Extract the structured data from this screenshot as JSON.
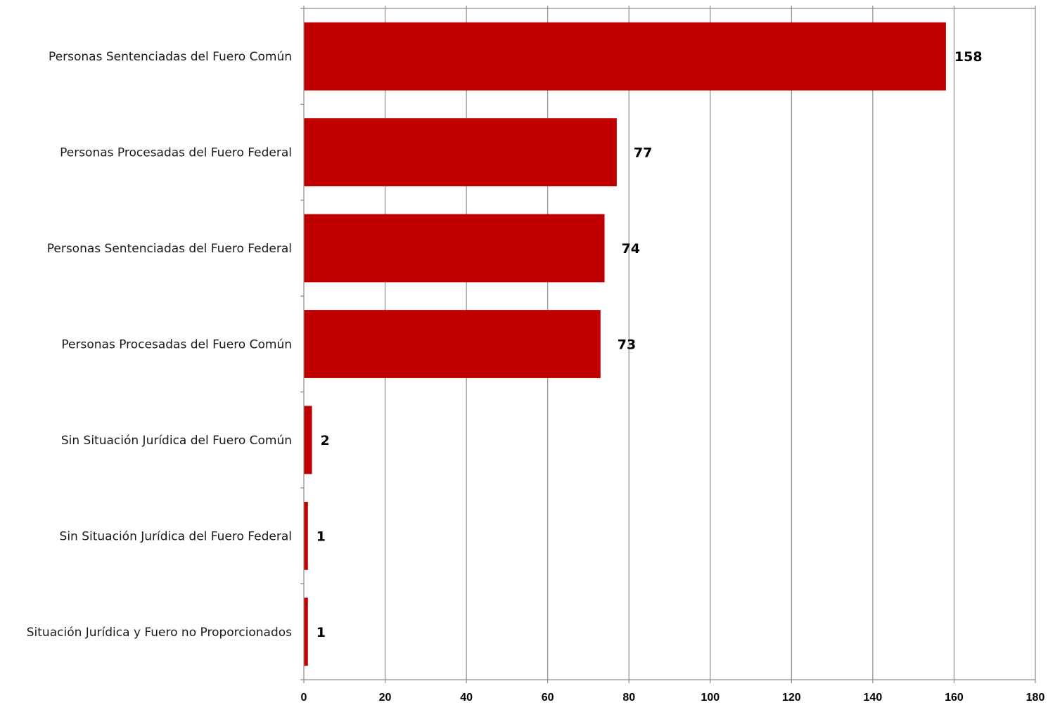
{
  "chart_data": {
    "type": "bar",
    "orientation": "horizontal",
    "categories": [
      "Personas Sentenciadas del Fuero Común",
      "Personas Procesadas del Fuero Federal",
      "Personas Sentenciadas del Fuero Federal",
      "Personas Procesadas del Fuero Común",
      "Sin Situación Jurídica del Fuero Común",
      "Sin Situación Jurídica del Fuero Federal",
      "Situación Jurídica y Fuero no Proporcionados"
    ],
    "values": [
      158,
      77,
      74,
      73,
      2,
      1,
      1
    ],
    "value_labels": [
      "158",
      "77",
      "74",
      "73",
      "2",
      "1",
      "1"
    ],
    "xlim": [
      0,
      180
    ],
    "x_ticks": [
      0,
      20,
      40,
      60,
      80,
      100,
      120,
      140,
      160,
      180
    ],
    "x_tick_labels": [
      "0",
      "20",
      "40",
      "60",
      "80",
      "100",
      "120",
      "140",
      "160",
      "180"
    ],
    "title": "",
    "xlabel": "",
    "ylabel": "",
    "grid": "vertical",
    "legend": "none",
    "bar_color": "#c00000",
    "grid_color": "#8c8c8c"
  }
}
